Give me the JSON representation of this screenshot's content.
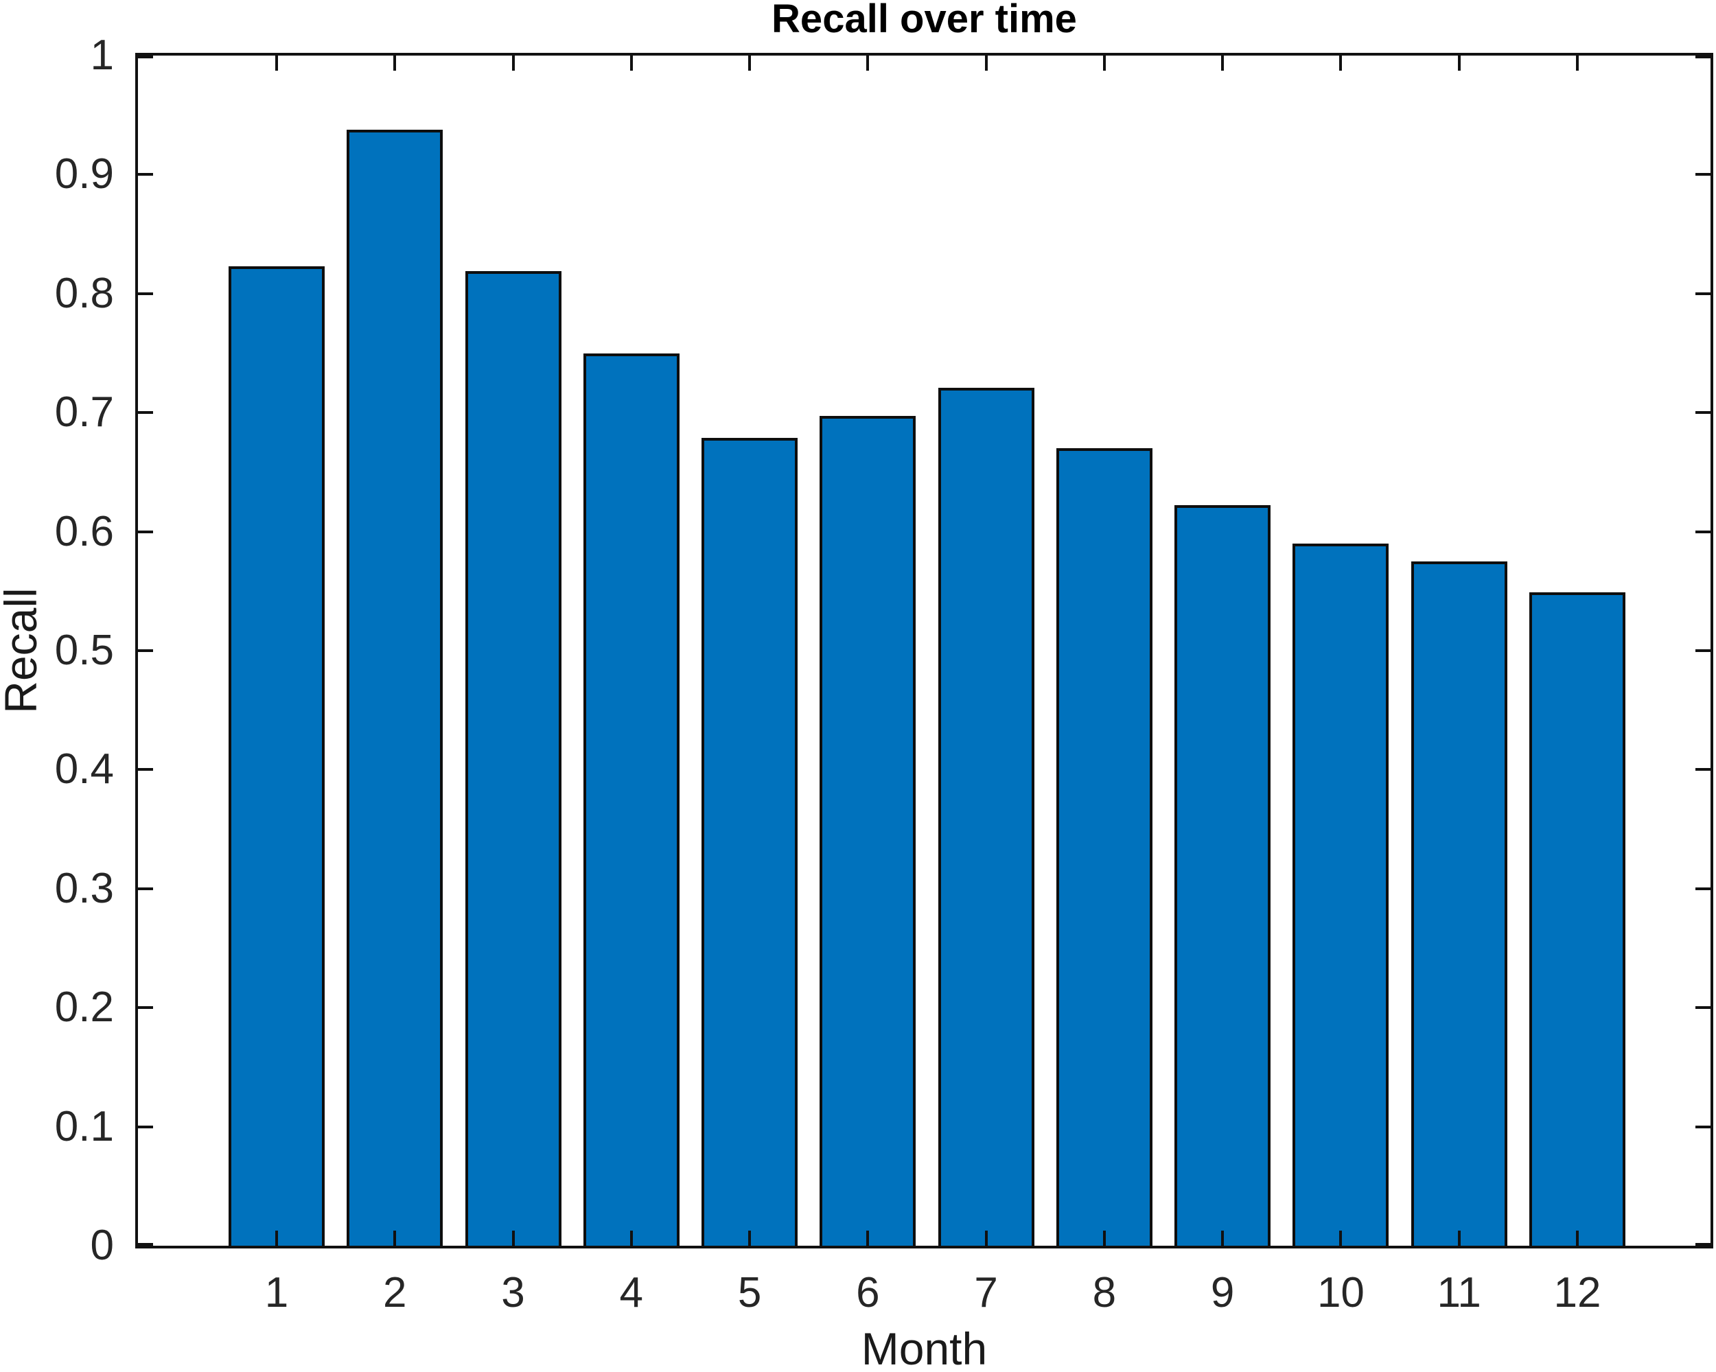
{
  "chart_data": {
    "type": "bar",
    "title": "Recall over time",
    "xlabel": "Month",
    "ylabel": "Recall",
    "categories": [
      1,
      2,
      3,
      4,
      5,
      6,
      7,
      8,
      9,
      10,
      11,
      12
    ],
    "values": [
      0.823,
      0.938,
      0.819,
      0.75,
      0.679,
      0.697,
      0.721,
      0.67,
      0.622,
      0.59,
      0.575,
      0.549
    ],
    "y_ticks": [
      0,
      0.1,
      0.2,
      0.3,
      0.4,
      0.5,
      0.6,
      0.7,
      0.8,
      0.9,
      1
    ],
    "ylim": [
      0,
      1
    ],
    "grid": "off",
    "legend": "none",
    "bar_fill_color": "#0072BD",
    "bar_edge_color": "#0e0e0e",
    "axis_color": "#111111",
    "tick_label_color": "#262626"
  }
}
